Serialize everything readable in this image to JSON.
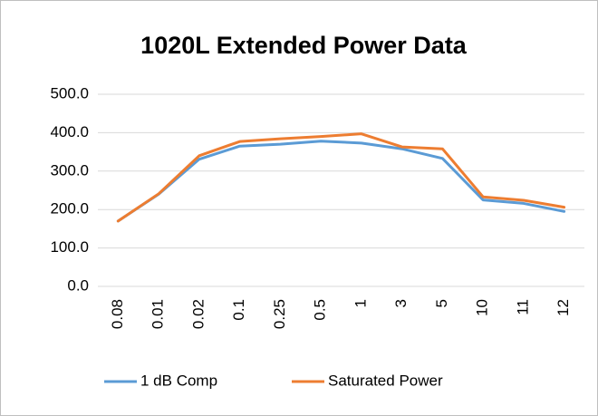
{
  "chart_data": {
    "type": "line",
    "title": "1020L Extended Power Data",
    "categories": [
      "0.08",
      "0.01",
      "0.02",
      "0.1",
      "0.25",
      "0.5",
      "1",
      "3",
      "5",
      "10",
      "11",
      "12"
    ],
    "series": [
      {
        "name": "1 dB Comp",
        "color": "#5b9bd5",
        "values": [
          170,
          240,
          331,
          365,
          370,
          378,
          373,
          358,
          333,
          225,
          216,
          195
        ]
      },
      {
        "name": "Saturated Power",
        "color": "#ed7d31",
        "values": [
          170,
          241,
          340,
          377,
          384,
          390,
          397,
          363,
          358,
          233,
          224,
          206
        ]
      }
    ],
    "ylim": [
      0,
      500
    ],
    "yticks": [
      {
        "value": 0,
        "label": "0.0"
      },
      {
        "value": 100,
        "label": "100.0"
      },
      {
        "value": 200,
        "label": "200.0"
      },
      {
        "value": 300,
        "label": "300.0"
      },
      {
        "value": 400,
        "label": "400.0"
      },
      {
        "value": 500,
        "label": "500.0"
      }
    ],
    "grid": true,
    "legend": "bottom"
  }
}
